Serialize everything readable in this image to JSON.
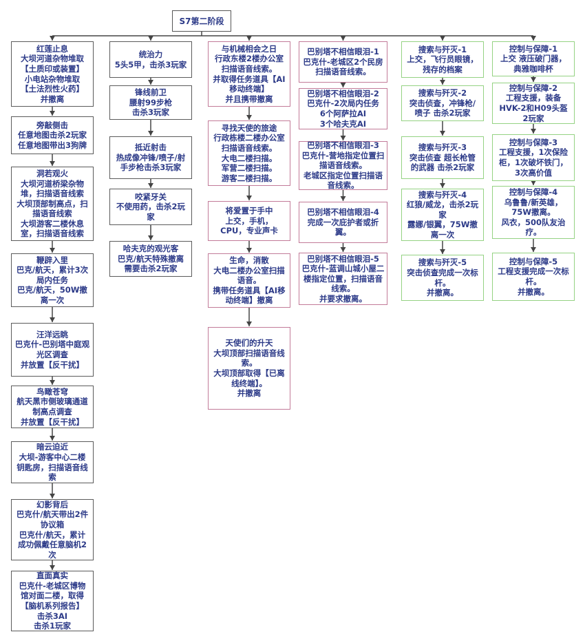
{
  "root": {
    "label": "S7第二阶段"
  },
  "colors": {
    "text": "#2c3a88",
    "gray_border": "#5a5a5a",
    "pink_border": "#c27a98",
    "green_border": "#94d282",
    "connector": "#444444"
  },
  "columns": [
    {
      "style": "gray",
      "nodes": [
        {
          "lines": [
            "红莲止息",
            "大坝河道杂物堆取",
            "【土质印或装置】",
            "小电站杂物堆取",
            "【土法烈性火药】",
            "并撤离"
          ]
        },
        {
          "lines": [
            "旁敲侧击",
            "任意地图击杀2玩家",
            "任意地图带出3狗牌"
          ]
        },
        {
          "lines": [
            "洞若观火",
            "大坝河道桥梁杂物",
            "堆，扫描语音线索",
            "大坝顶部制高点，扫",
            "描语音线索",
            "大坝游客二楼休息",
            "室，扫描语音线索"
          ]
        },
        {
          "lines": [
            "鞭辟入里",
            "巴克/航天，累计3次",
            "局内任务",
            "巴克/航天，50W撤",
            "离一次"
          ]
        },
        {
          "lines": [
            "汪洋远眺",
            "巴克什-巴别塔中庭观",
            "光区调查",
            "并放置【反干扰】"
          ]
        },
        {
          "lines": [
            "鸟瞰苍穹",
            "航天黑市侧玻璃通道",
            "制高点调查",
            "并放置【反干扰】"
          ]
        },
        {
          "lines": [
            "暗云迫近",
            "大坝-游客中心二楼",
            "钥匙房，扫描语音线",
            "索"
          ]
        },
        {
          "lines": [
            "幻影背后",
            "巴克什/航天带出2件",
            "协议箱",
            "巴克什/航天，累计",
            "成功佩戴任意脑机2",
            "次"
          ]
        },
        {
          "lines": [
            "直面真实",
            "巴克什-老城区博物",
            "馆对面二楼，取得",
            "【脑机系列报告】",
            "击杀3AI",
            "击杀1玩家"
          ]
        }
      ]
    },
    {
      "style": "gray",
      "nodes": [
        {
          "lines": [
            "统治力",
            "5头5甲，击杀3玩家"
          ]
        },
        {
          "lines": [
            "锋线前卫",
            "腰射99步枪",
            "击杀3玩家"
          ]
        },
        {
          "lines": [
            "抵近射击",
            "热成像冲锋/喷子/射",
            "手步枪击杀3玩家"
          ]
        },
        {
          "lines": [
            "咬紧牙关",
            "不使用药，击杀2玩",
            "家"
          ]
        },
        {
          "lines": [
            "哈夫克的观光客",
            "巴克/航天特殊撤离",
            "需要击杀2玩家"
          ]
        }
      ]
    },
    {
      "style": "pink",
      "nodes": [
        {
          "lines": [
            "与机械相会之日",
            "行政东楼2楼办公室",
            "扫描语音线索。",
            "并取得任务道具【AI",
            "移动终端】",
            "并且携带撤离"
          ]
        },
        {
          "lines": [
            "寻找天使的旅途",
            "行政栋楼二楼办公室",
            "扫描语音线索。",
            "大电二楼扫描。",
            "军营二楼扫描。",
            "游客二楼扫描。"
          ]
        },
        {
          "lines": [
            "将爱置于手中",
            "上交，手机，",
            "CPU，专业声卡"
          ]
        },
        {
          "lines": [
            "生命，消散",
            "大电二楼办公室扫描",
            "语音。",
            "携带任务道具【AI移",
            "动终端】撤离"
          ]
        },
        {
          "lines": [
            "天使们的升天",
            "大坝顶部扫描语音线",
            "索。",
            "大坝顶部取得【已离",
            "线终端】。",
            "并撤离"
          ]
        }
      ]
    },
    {
      "style": "pink",
      "nodes": [
        {
          "lines": [
            "巴别塔不相信眼泪-1",
            "巴克什-老城区2个民房",
            "扫描语音线索。"
          ]
        },
        {
          "lines": [
            "巴别塔不相信眼泪-2",
            "巴克什-2次局内任务",
            "6个阿萨拉AI",
            "3个哈夫克AI"
          ]
        },
        {
          "lines": [
            "巴别塔不相信眼泪-3",
            "巴克什-营地指定位置扫",
            "描语音线索。",
            "老城区指定位置扫描语",
            "音线索。"
          ]
        },
        {
          "lines": [
            "巴别塔不相信眼泪-4",
            "完成一次庇护者或折",
            "翼。"
          ]
        },
        {
          "lines": [
            "巴别塔不相信眼泪-5",
            "巴克什-蓝调山城小屋二",
            "楼指定位置，扫描语音",
            "线索。",
            "并要求撤离。"
          ]
        }
      ]
    },
    {
      "style": "green",
      "nodes": [
        {
          "lines": [
            "搜索与歼灭-1",
            "上交，飞行员眼镜，",
            "残存的档案"
          ]
        },
        {
          "lines": [
            "搜索与歼灭-2",
            "突击侦查，冲锋枪/",
            "喷子 击杀2玩家"
          ]
        },
        {
          "lines": [
            "搜索与歼灭-3",
            "突击侦查 超长枪管",
            "的武器 击杀2玩家"
          ]
        },
        {
          "lines": [
            "搜索与歼灭-4",
            "红狼/威龙，击杀2玩",
            "家",
            "露娜/银翼，75W撤",
            "离一次"
          ]
        },
        {
          "lines": [
            "搜索与歼灭-5",
            "突击侦查完成一次标",
            "杆。",
            "并撤离。"
          ]
        }
      ]
    },
    {
      "style": "green",
      "nodes": [
        {
          "lines": [
            "控制与保障-1",
            "上交 液压破门器，",
            "典雅咖啡杯"
          ]
        },
        {
          "lines": [
            "控制与保障-2",
            "工程支援，装备",
            "HVK-2和H09头盔",
            "2玩家"
          ]
        },
        {
          "lines": [
            "控制与保障-3",
            "工程支援，1次保险",
            "柜，1次破坏铁门，",
            "3次高价值"
          ]
        },
        {
          "lines": [
            "控制与保障-4",
            "乌鲁鲁/新英雄，",
            "75W撤离。",
            "风衣，500队友治",
            "疗。"
          ]
        },
        {
          "lines": [
            "控制与保障-5",
            "工程支援完成一次标",
            "杆。",
            "并撤离。"
          ]
        }
      ]
    }
  ]
}
